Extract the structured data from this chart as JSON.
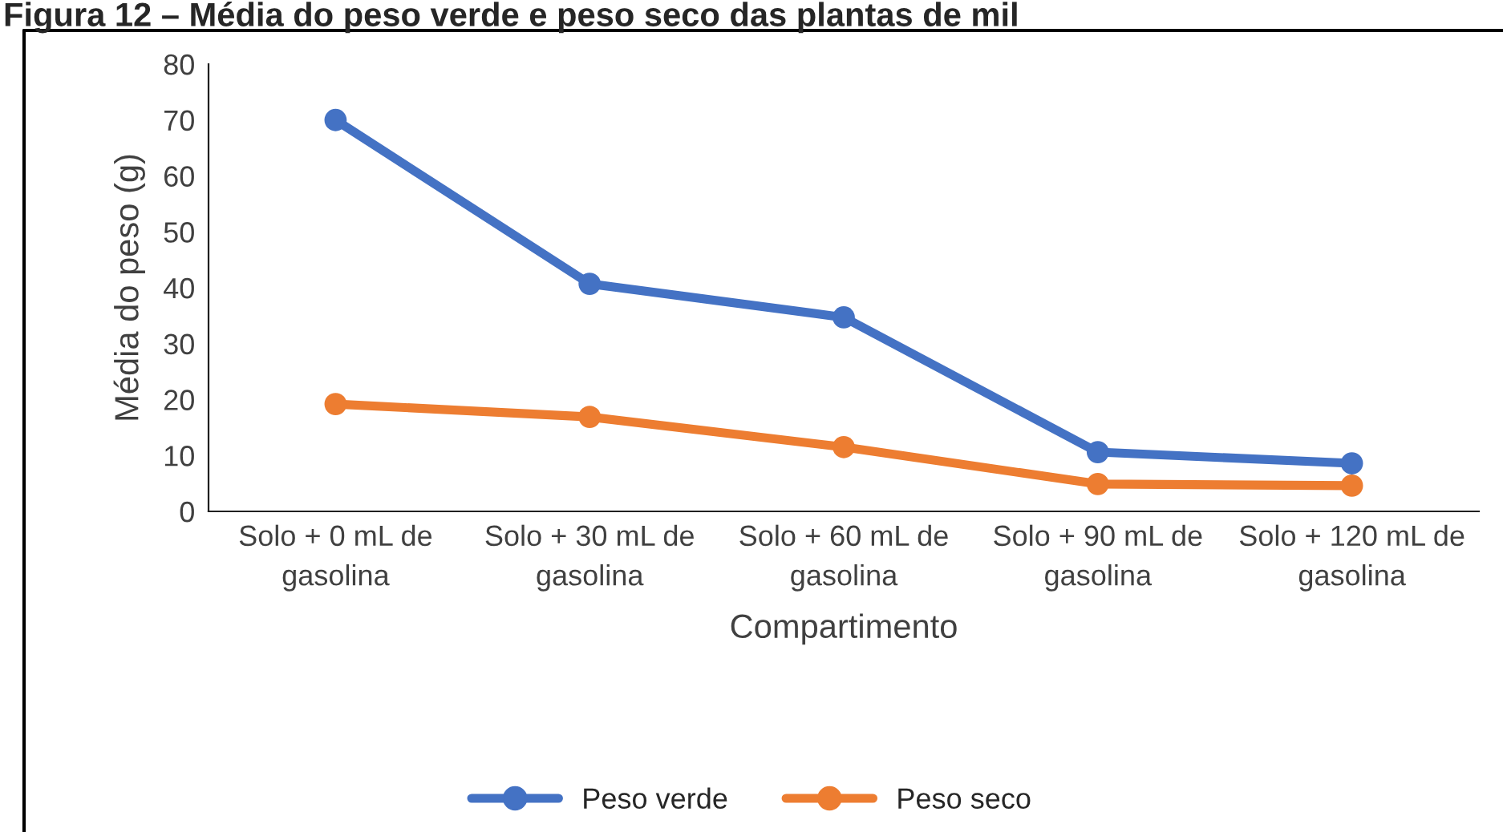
{
  "chart_data": {
    "type": "line",
    "title": "Figura 12 – Média do peso verde e peso seco das plantas de mil",
    "xlabel": "Compartimento",
    "ylabel": "Média do peso (g)",
    "categories": [
      "Solo + 0 mL de gasolina",
      "Solo + 30 mL de gasolina",
      "Solo + 60 mL de gasolina",
      "Solo + 90 mL de gasolina",
      "Solo + 120 mL de gasolina"
    ],
    "series": [
      {
        "name": "Peso verde",
        "color": "#4472c4",
        "values": [
          70,
          40.7,
          34.7,
          10.6,
          8.6
        ]
      },
      {
        "name": "Peso seco",
        "color": "#ed7d31",
        "values": [
          19.2,
          16.9,
          11.5,
          4.9,
          4.6
        ]
      }
    ],
    "ylim": [
      0,
      80
    ],
    "yticks": [
      0,
      10,
      20,
      30,
      40,
      50,
      60,
      70,
      80
    ],
    "grid": false,
    "legend": "bottom",
    "marker": "circle",
    "line_style": "solid"
  }
}
